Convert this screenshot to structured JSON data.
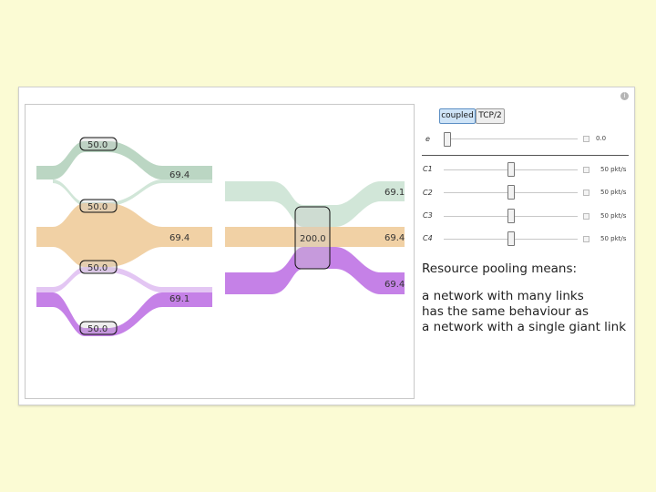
{
  "tabs": [
    {
      "label": "coupled",
      "active": true
    },
    {
      "label": "TCP/2",
      "active": false
    }
  ],
  "sliders": [
    {
      "label": "e",
      "value": "0.0",
      "level": 0.0
    },
    {
      "label": "C1",
      "value": "50 pkt/s",
      "level": 0.5
    },
    {
      "label": "C2",
      "value": "50 pkt/s",
      "level": 0.5
    },
    {
      "label": "C3",
      "value": "50 pkt/s",
      "level": 0.5
    },
    {
      "label": "C4",
      "value": "50 pkt/s",
      "level": 0.5
    }
  ],
  "heading": "Resource pooling means:",
  "description": [
    "a network with many links",
    "has the same behaviour as",
    "a network with a single giant link"
  ],
  "left_diagram": {
    "links": [
      "50.0",
      "50.0",
      "50.0",
      "50.0"
    ],
    "flows": [
      "69.4",
      "69.4",
      "69.1"
    ]
  },
  "right_diagram": {
    "link": "200.0",
    "flows": [
      "69.1",
      "69.4",
      "69.4"
    ]
  },
  "colors": {
    "flow_green": "#b7d4c0",
    "flow_orange": "#f0cfa0",
    "flow_purple": "#c27ae6",
    "flow_purple_light": "#e2c3f2",
    "background": "#fbfbd4"
  }
}
